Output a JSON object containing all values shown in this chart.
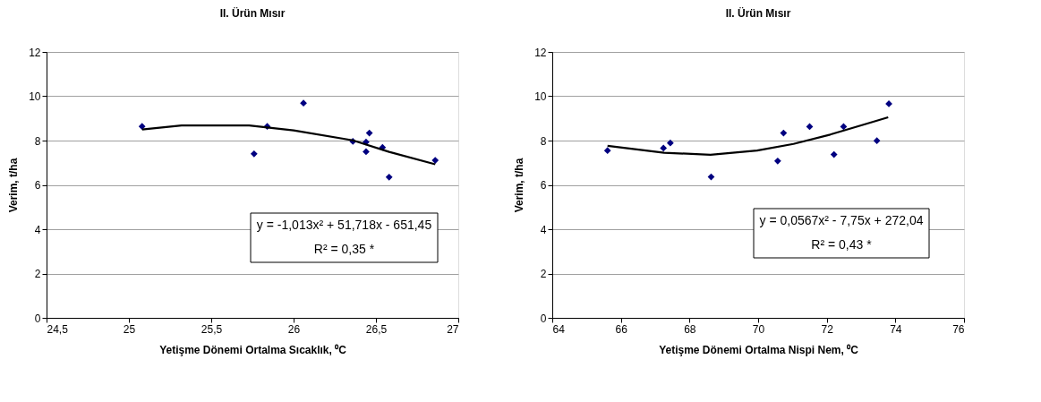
{
  "chart_data": [
    {
      "type": "scatter",
      "title": "II. Ürün Mısır",
      "xlabel": "Yetişme Dönemi Ortalma Sıcaklık, ⁰C",
      "ylabel": "Verim, t/ha",
      "xlim": [
        24.5,
        27
      ],
      "xticks": [
        {
          "value": 24.5,
          "label": "24,5"
        },
        25,
        {
          "value": 25.5,
          "label": "25,5"
        },
        26,
        {
          "value": 26.5,
          "label": "26,5"
        },
        27
      ],
      "ylim": [
        0,
        12
      ],
      "yticks": [
        0,
        2,
        4,
        6,
        8,
        10,
        12
      ],
      "grid": "y",
      "series": [
        {
          "color": "#000080",
          "marker": "diamond",
          "x": [
            25.08,
            25.76,
            25.84,
            26.06,
            26.36,
            26.44,
            26.44,
            26.46,
            26.54,
            26.58,
            26.86
          ],
          "values": [
            8.64,
            7.4,
            8.64,
            9.69,
            7.96,
            7.93,
            7.5,
            8.34,
            7.69,
            6.35,
            7.11
          ]
        },
        {
          "type": "line",
          "color": "#000000",
          "marker": "none",
          "line_style": "solid",
          "x": [
            25.08,
            25.32,
            25.73,
            26.0,
            26.36,
            26.58,
            26.86
          ],
          "values": [
            8.5,
            8.68,
            8.68,
            8.46,
            8.01,
            7.49,
            6.93
          ]
        }
      ],
      "annotations": [
        "y = -1,013x² + 51,718x - 651,45",
        "R² = 0,35 *"
      ]
    },
    {
      "type": "scatter",
      "title": "II. Ürün Mısır",
      "xlabel": "Yetişme Dönemi Ortalma Nispi Nem, ⁰C",
      "ylabel": "Verim, t/ha",
      "xlim": [
        64,
        76
      ],
      "xticks": [
        64,
        66,
        68,
        70,
        72,
        74,
        76
      ],
      "ylim": [
        0,
        12
      ],
      "yticks": [
        0,
        2,
        4,
        6,
        8,
        10,
        12
      ],
      "grid": "y",
      "series": [
        {
          "color": "#000080",
          "marker": "diamond",
          "x": [
            65.61,
            67.24,
            67.44,
            68.63,
            70.57,
            70.74,
            71.5,
            72.21,
            72.49,
            73.46,
            73.81
          ],
          "values": [
            7.55,
            7.66,
            7.89,
            6.36,
            7.08,
            8.34,
            8.63,
            7.37,
            8.63,
            7.99,
            9.66
          ]
        },
        {
          "type": "line",
          "color": "#000000",
          "marker": "none",
          "line_style": "solid",
          "x": [
            65.61,
            67.26,
            68.61,
            69.97,
            71.03,
            72.1,
            73.07,
            73.79
          ],
          "values": [
            7.76,
            7.45,
            7.36,
            7.55,
            7.85,
            8.27,
            8.72,
            9.05
          ]
        }
      ],
      "annotations": [
        "y = 0,0567x² - 7,75x + 272,04",
        "R² = 0,43 *"
      ]
    }
  ]
}
